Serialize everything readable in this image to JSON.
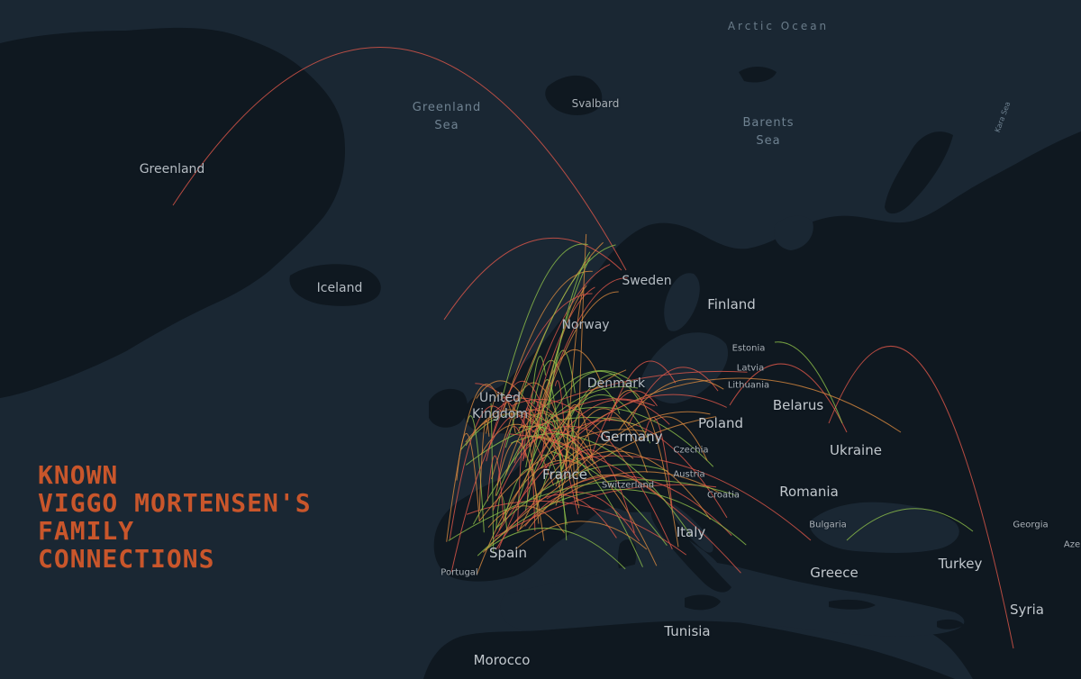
{
  "title_lines": [
    "KNOWN",
    "VIGGO MORTENSEN'S",
    "FAMILY",
    "CONNECTIONS"
  ],
  "colors": {
    "water": "#1a2733",
    "land": "#0f1820",
    "title": "#c9562b",
    "arc_red": "#e0584a",
    "arc_green": "#8fc24a",
    "arc_orange": "#d98a3e"
  },
  "labels": {
    "arctic_ocean": "Arctic Ocean",
    "greenland_sea": "Greenland Sea",
    "barents_sea": "Barents Sea",
    "kara_sea": "Kara Sea",
    "greenland": "Greenland",
    "svalbard": "Svalbard",
    "iceland": "Iceland",
    "sweden": "Sweden",
    "finland": "Finland",
    "norway": "Norway",
    "estonia": "Estonia",
    "latvia": "Latvia",
    "lithuania": "Lithuania",
    "denmark": "Denmark",
    "united_kingdom": "United Kingdom",
    "belarus": "Belarus",
    "poland": "Poland",
    "germany": "Germany",
    "czechia": "Czechia",
    "ukraine": "Ukraine",
    "austria": "Austria",
    "france": "France",
    "switzerland": "Switzerland",
    "croatia": "Croatia",
    "romania": "Romania",
    "bulgaria": "Bulgaria",
    "georgia": "Georgia",
    "azerbaijan": "Aze",
    "italy": "Italy",
    "spain": "Spain",
    "portugal": "Portugal",
    "greece": "Greece",
    "turkey": "Turkey",
    "syria": "Syria",
    "tunisia": "Tunisia",
    "morocco": "Morocco"
  }
}
